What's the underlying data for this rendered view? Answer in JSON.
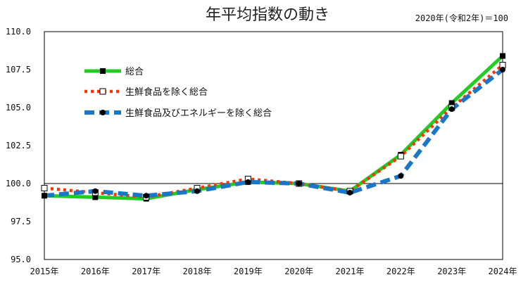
{
  "chart_data": {
    "type": "line",
    "title": "年平均指数の動き",
    "note": "2020年(令和2年)＝100",
    "categories": [
      "2015年",
      "2016年",
      "2017年",
      "2018年",
      "2019年",
      "2020年",
      "2021年",
      "2022年",
      "2023年",
      "2024年"
    ],
    "ylim": [
      95.0,
      110.0
    ],
    "yticks": [
      "95.0",
      "97.5",
      "100.0",
      "102.5",
      "105.0",
      "107.5",
      "110.0"
    ],
    "reference_line": 100.0,
    "grid": false,
    "legend_position": "top-left",
    "series": [
      {
        "name": "総合",
        "values": [
          99.2,
          99.1,
          99.0,
          99.6,
          100.1,
          100.0,
          99.5,
          101.9,
          105.3,
          108.4
        ],
        "color": "#22cc22",
        "style": "solid",
        "marker": "square-filled"
      },
      {
        "name": "生鮮食品を除く総合",
        "values": [
          99.7,
          99.4,
          99.1,
          99.7,
          100.3,
          100.0,
          99.5,
          101.8,
          105.0,
          107.8
        ],
        "color": "#ff3300",
        "style": "dotted",
        "marker": "square-open"
      },
      {
        "name": "生鮮食品及びエネルギーを除く総合",
        "values": [
          99.2,
          99.5,
          99.2,
          99.5,
          100.1,
          100.0,
          99.4,
          100.5,
          104.9,
          107.5
        ],
        "color": "#1a77c8",
        "style": "dashed",
        "marker": "circle-filled"
      }
    ]
  }
}
